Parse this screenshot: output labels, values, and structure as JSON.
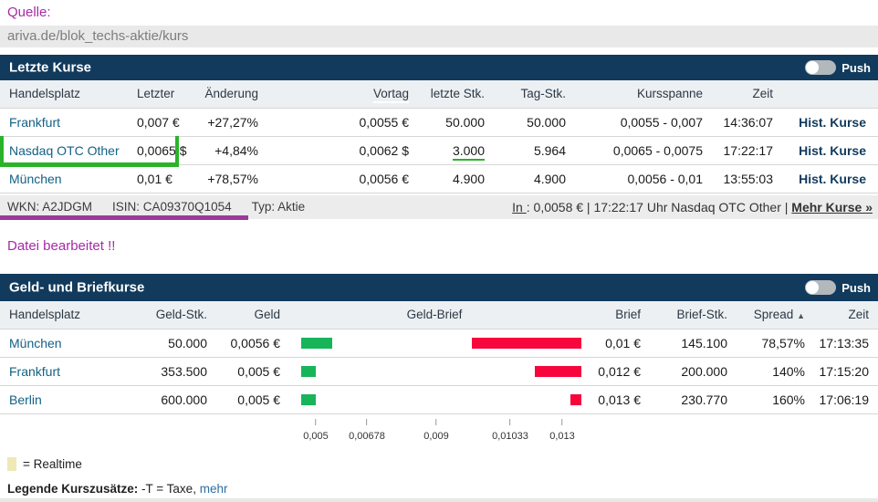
{
  "source": {
    "label": "Quelle:",
    "url": "ariva.de/blok_techs-aktie/kurs"
  },
  "colors": {
    "navy": "#113a5c",
    "magenta": "#a62aa6",
    "purple_bar": "#9b3a9b",
    "green_frame": "#2ab32a",
    "green_bar": "#17b45a",
    "red_bar": "#f6063c",
    "venue_link": "#136185",
    "mehr_link": "#2e6da4",
    "realtime_yellow": "#efe9b5"
  },
  "letzte_kurse": {
    "title": "Letzte Kurse",
    "push_label": "Push",
    "columns": [
      "Handelsplatz",
      "Letzter",
      "Änderung",
      "Vortag",
      "letzte Stk.",
      "Tag-Stk.",
      "Kursspanne",
      "Zeit"
    ],
    "rows": [
      {
        "handelsplatz": "Frankfurt",
        "letzter": "0,007 €",
        "aenderung": "+27,27%",
        "vortag": "0,0055 €",
        "letzte_stk": "50.000",
        "tag_stk": "50.000",
        "kursspanne": "0,0055 - 0,007",
        "zeit": "14:36:07",
        "hist": "Hist. Kurse"
      },
      {
        "handelsplatz": "Nasdaq OTC Other",
        "letzter": "0,0065 $",
        "aenderung": "+4,84%",
        "vortag": "0,0062 $",
        "letzte_stk": "3.000",
        "tag_stk": "5.964",
        "kursspanne": "0,0065 - 0,0075",
        "zeit": "17:22:17",
        "hist": "Hist. Kurse"
      },
      {
        "handelsplatz": "München",
        "letzter": "0,01 €",
        "aenderung": "+78,57%",
        "vortag": "0,0056 €",
        "letzte_stk": "4.900",
        "tag_stk": "4.900",
        "kursspanne": "0,0056 - 0,01",
        "zeit": "13:55:03",
        "hist": "Hist. Kurse"
      }
    ]
  },
  "instrument": {
    "wkn": "WKN: A2JDGM",
    "isin": "ISIN: CA09370Q1054",
    "typ": "Typ: Aktie",
    "inline_quote": {
      "in_label": "In ",
      "detail": ": 0,0058 € | 17:22:17 Uhr Nasdaq OTC Other | ",
      "more": "Mehr Kurse »"
    }
  },
  "notice": "Datei bearbeitet !!",
  "geld_brief": {
    "title": "Geld- und Briefkurse",
    "push_label": "Push",
    "columns": [
      "Handelsplatz",
      "Geld-Stk.",
      "Geld",
      "Geld-Brief",
      "Brief",
      "Brief-Stk.",
      "Spread",
      "Zeit"
    ],
    "sort_arrow": "▲",
    "rows": [
      {
        "handelsplatz": "München",
        "geld_stk": "50.000",
        "geld": "0,0056 €",
        "brief": "0,01 €",
        "brief_stk": "145.100",
        "spread": "78,57%",
        "zeit": "17:13:35",
        "green_w": 34,
        "red_w": 120
      },
      {
        "handelsplatz": "Frankfurt",
        "geld_stk": "353.500",
        "geld": "0,005 €",
        "brief": "0,012 €",
        "brief_stk": "200.000",
        "spread": "140%",
        "zeit": "17:15:20",
        "green_w": 16,
        "red_w": 51
      },
      {
        "handelsplatz": "Berlin",
        "geld_stk": "600.000",
        "geld": "0,005 €",
        "brief": "0,013 €",
        "brief_stk": "230.770",
        "spread": "160%",
        "zeit": "17:06:19",
        "green_w": 16,
        "red_w": 12
      }
    ],
    "axis": {
      "ticks": [
        "0,005",
        "0,00678",
        "0,009",
        "0,01033",
        "0,013"
      ],
      "positions": [
        346,
        402,
        478,
        559,
        616
      ]
    }
  },
  "chart_data": {
    "type": "bar",
    "title": "Geld- und Briefkurse spread bars",
    "categories": [
      "München",
      "Frankfurt",
      "Berlin"
    ],
    "series": [
      {
        "name": "Geld",
        "values": [
          0.0056,
          0.005,
          0.005
        ]
      },
      {
        "name": "Brief",
        "values": [
          0.01,
          0.012,
          0.013
        ]
      }
    ],
    "xlabel": "",
    "ylabel": "",
    "axis_ticks": [
      0.005,
      0.00678,
      0.009,
      0.01033,
      0.013
    ],
    "xlim": [
      0.005,
      0.013
    ],
    "legend_position": "none",
    "grid": false
  },
  "legend": {
    "realtime": "= Realtime",
    "kurszusaetze_label": "Legende Kurszusätze:",
    "kurszusaetze_text": " -T = Taxe, ",
    "mehr": "mehr"
  }
}
